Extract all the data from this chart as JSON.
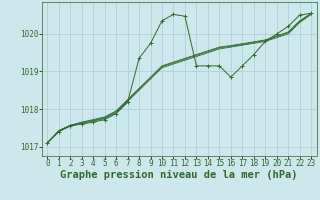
{
  "background_color": "#cce8ec",
  "grid_color": "#aaccd4",
  "line_color": "#2d6a2d",
  "marker_color": "#2d6a2d",
  "xlabel": "Graphe pression niveau de la mer (hPa)",
  "xlabel_fontsize": 7.5,
  "tick_fontsize": 5.5,
  "xlim": [
    -0.5,
    23.5
  ],
  "ylim": [
    1016.75,
    1020.85
  ],
  "yticks": [
    1017,
    1018,
    1019,
    1020
  ],
  "xticks": [
    0,
    1,
    2,
    3,
    4,
    5,
    6,
    7,
    8,
    9,
    10,
    11,
    12,
    13,
    14,
    15,
    16,
    17,
    18,
    19,
    20,
    21,
    22,
    23
  ],
  "series": [
    [
      1017.1,
      1017.4,
      1017.55,
      1017.6,
      1017.65,
      1017.72,
      1017.88,
      1018.18,
      1019.35,
      1019.75,
      1020.35,
      1020.52,
      1020.47,
      1019.15,
      1019.15,
      1019.15,
      1018.85,
      1019.15,
      1019.45,
      1019.8,
      1020.0,
      1020.2,
      1020.5,
      1020.55
    ],
    [
      1017.1,
      1017.4,
      1017.55,
      1017.62,
      1017.68,
      1017.75,
      1017.9,
      1018.2,
      1018.5,
      1018.8,
      1019.1,
      1019.2,
      1019.3,
      1019.4,
      1019.5,
      1019.6,
      1019.65,
      1019.7,
      1019.75,
      1019.8,
      1019.9,
      1020.0,
      1020.3,
      1020.52
    ],
    [
      1017.1,
      1017.42,
      1017.56,
      1017.64,
      1017.7,
      1017.77,
      1017.93,
      1018.23,
      1018.53,
      1018.83,
      1019.13,
      1019.23,
      1019.33,
      1019.43,
      1019.53,
      1019.63,
      1019.67,
      1019.72,
      1019.77,
      1019.82,
      1019.93,
      1020.03,
      1020.33,
      1020.53
    ],
    [
      1017.1,
      1017.43,
      1017.57,
      1017.65,
      1017.72,
      1017.79,
      1017.95,
      1018.25,
      1018.55,
      1018.85,
      1019.15,
      1019.25,
      1019.35,
      1019.45,
      1019.55,
      1019.65,
      1019.69,
      1019.74,
      1019.79,
      1019.84,
      1019.95,
      1020.05,
      1020.35,
      1020.55
    ]
  ]
}
